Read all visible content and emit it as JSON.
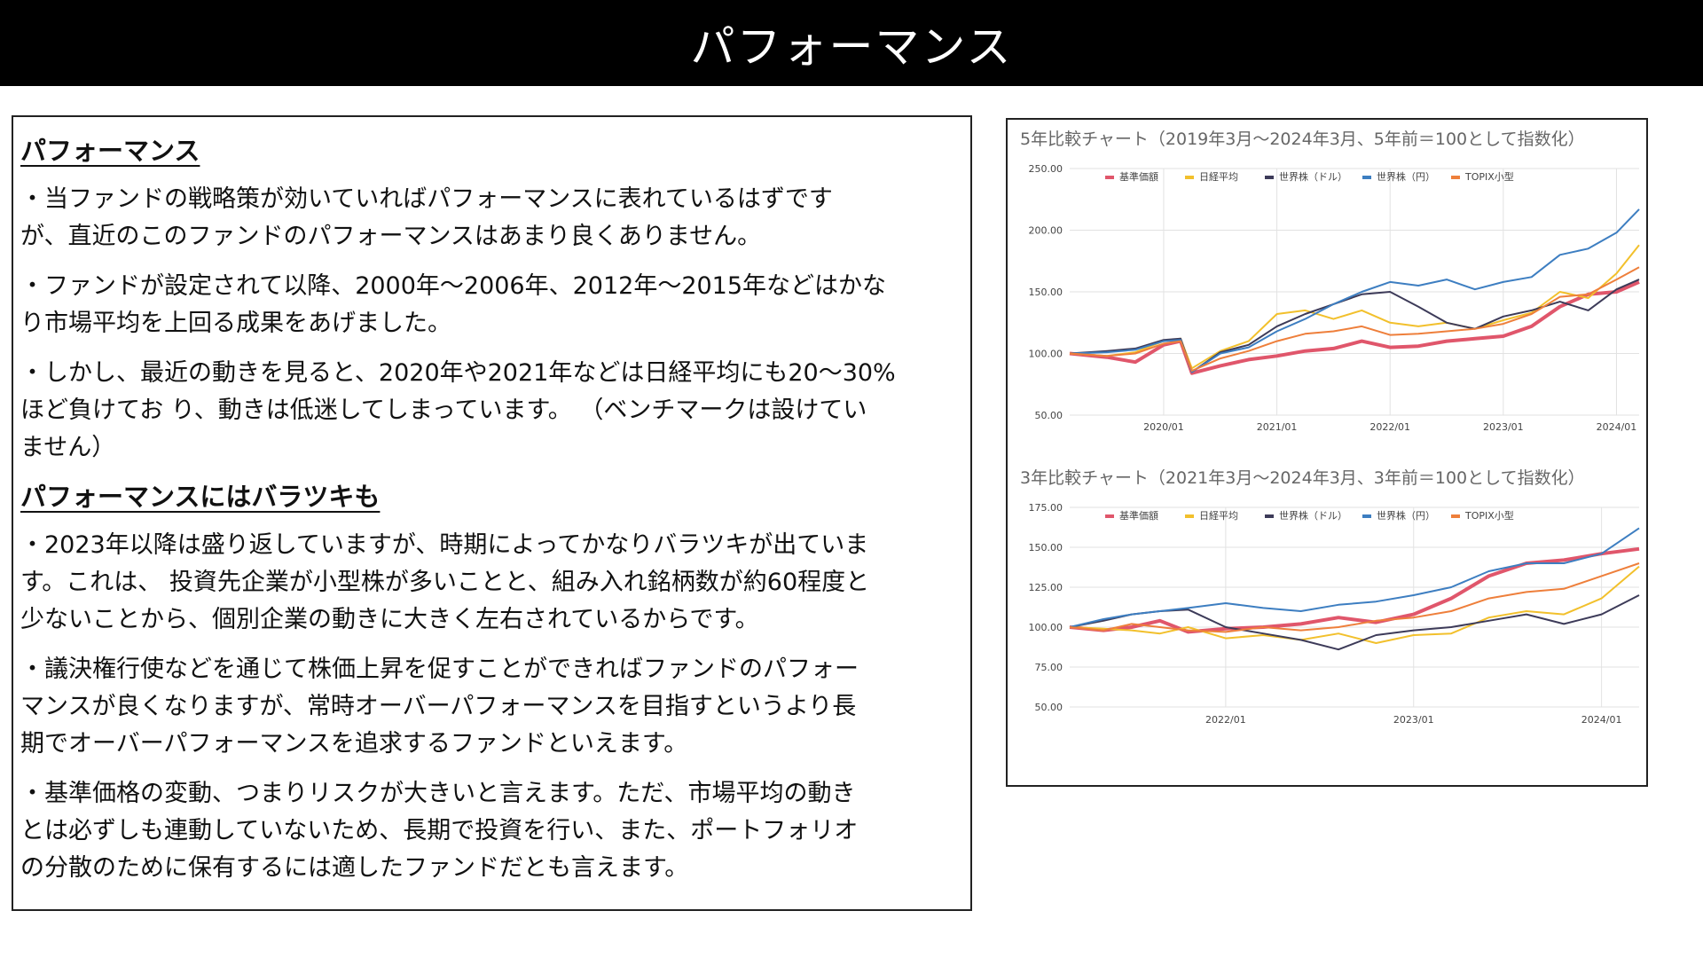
{
  "header": {
    "title": "パフォーマンス"
  },
  "text": {
    "section1_title": "パフォーマンス",
    "bullet1": "・当ファンドの戦略策が効いていればパフォーマンスに表れているはずです\nが、直近のこのファンドのパフォーマンスはあまり良くありません。",
    "bullet2": "・ファンドが設定されて以降、2000年〜2006年、2012年〜2015年などはかな\nり市場平均を上回る成果をあげました。",
    "bullet3": "・しかし、最近の動きを見ると、2020年や2021年などは日経平均にも20〜30%\nほど負けてお り、動きは低迷してしまっています。 （ベンチマークは設けてい\nません）",
    "section2_title": "パフォーマンスにはバラツキも",
    "bullet4": "・2023年以降は盛り返していますが、時期によってかなりバラツキが出ていま\nす。これは、 投資先企業が小型株が多いことと、組み入れ銘柄数が約60程度と\n少ないことから、個別企業の動きに大きく左右されているからです。",
    "bullet5": "・議決権行使などを通じて株価上昇を促すことができればファンドのパフォー\nマンスが良くなりますが、常時オーバーパフォーマンスを目指すというより長\n期でオーバーパフォーマンスを追求するファンドといえます。",
    "bullet6": "・基準価格の変動、つまりリスクが大きいと言えます。ただ、市場平均の動き\nとは必ずしも連動していないため、長期で投資を行い、また、ポートフォリオ\nの分散のために保有するには適したファンドだとも言えます。"
  },
  "chart_data": [
    {
      "type": "line",
      "title": "5年比較チャート（2019年3月〜2024年3月、5年前＝100として指数化）",
      "xlabel": "",
      "ylabel": "",
      "x_range": [
        2019.17,
        2024.2
      ],
      "ylim": [
        50,
        250
      ],
      "yticks": [
        "50.00",
        "100.00",
        "150.00",
        "200.00",
        "250.00"
      ],
      "ytick_values": [
        50,
        100,
        150,
        200,
        250
      ],
      "xticks": [
        "2020/01",
        "2021/01",
        "2022/01",
        "2023/01",
        "2024/01"
      ],
      "xtick_values": [
        2020.0,
        2021.0,
        2022.0,
        2023.0,
        2024.0
      ],
      "grid": true,
      "legend_position": "top",
      "series": [
        {
          "name": "基準価額",
          "color": "#e0566b",
          "width": 4,
          "x": [
            2019.17,
            2019.5,
            2019.75,
            2020.0,
            2020.15,
            2020.25,
            2020.5,
            2020.75,
            2021.0,
            2021.25,
            2021.5,
            2021.75,
            2022.0,
            2022.25,
            2022.5,
            2022.75,
            2023.0,
            2023.25,
            2023.5,
            2023.75,
            2024.0,
            2024.2
          ],
          "values": [
            100,
            97,
            93,
            107,
            110,
            84,
            90,
            95,
            98,
            102,
            104,
            110,
            105,
            106,
            110,
            112,
            114,
            122,
            138,
            148,
            150,
            158
          ]
        },
        {
          "name": "日経平均",
          "color": "#f2c02c",
          "width": 2,
          "x": [
            2019.17,
            2019.5,
            2019.75,
            2020.0,
            2020.15,
            2020.25,
            2020.5,
            2020.75,
            2021.0,
            2021.25,
            2021.5,
            2021.75,
            2022.0,
            2022.25,
            2022.5,
            2022.75,
            2023.0,
            2023.25,
            2023.5,
            2023.75,
            2024.0,
            2024.2
          ],
          "values": [
            100,
            98,
            101,
            110,
            112,
            88,
            102,
            110,
            132,
            135,
            128,
            135,
            125,
            122,
            125,
            120,
            127,
            133,
            150,
            145,
            165,
            188
          ]
        },
        {
          "name": "世界株（ドル）",
          "color": "#3d3b59",
          "width": 2,
          "x": [
            2019.17,
            2019.5,
            2019.75,
            2020.0,
            2020.15,
            2020.25,
            2020.5,
            2020.75,
            2021.0,
            2021.25,
            2021.5,
            2021.75,
            2022.0,
            2022.25,
            2022.5,
            2022.75,
            2023.0,
            2023.25,
            2023.5,
            2023.75,
            2024.0,
            2024.2
          ],
          "values": [
            100,
            102,
            104,
            111,
            112,
            85,
            101,
            107,
            122,
            132,
            140,
            148,
            150,
            138,
            125,
            120,
            130,
            135,
            142,
            135,
            152,
            160
          ]
        },
        {
          "name": "世界株（円）",
          "color": "#3d7ec1",
          "width": 2,
          "x": [
            2019.17,
            2019.5,
            2019.75,
            2020.0,
            2020.15,
            2020.25,
            2020.5,
            2020.75,
            2021.0,
            2021.25,
            2021.5,
            2021.75,
            2022.0,
            2022.25,
            2022.5,
            2022.75,
            2023.0,
            2023.25,
            2023.5,
            2023.75,
            2024.0,
            2024.2
          ],
          "values": [
            100,
            101,
            103,
            110,
            111,
            85,
            100,
            105,
            118,
            128,
            140,
            150,
            158,
            155,
            160,
            152,
            158,
            162,
            180,
            185,
            198,
            217
          ]
        },
        {
          "name": "TOPIX小型",
          "color": "#ee7f3b",
          "width": 2,
          "x": [
            2019.17,
            2019.5,
            2019.75,
            2020.0,
            2020.15,
            2020.25,
            2020.5,
            2020.75,
            2021.0,
            2021.25,
            2021.5,
            2021.75,
            2022.0,
            2022.25,
            2022.5,
            2022.75,
            2023.0,
            2023.25,
            2023.5,
            2023.75,
            2024.0,
            2024.2
          ],
          "values": [
            100,
            98,
            100,
            108,
            110,
            86,
            96,
            102,
            110,
            116,
            118,
            122,
            115,
            116,
            118,
            120,
            124,
            132,
            146,
            148,
            160,
            170
          ]
        }
      ]
    },
    {
      "type": "line",
      "title": "3年比較チャート（2021年3月〜2024年3月、3年前＝100として指数化）",
      "xlabel": "",
      "ylabel": "",
      "x_range": [
        2021.17,
        2024.2
      ],
      "ylim": [
        50,
        175
      ],
      "yticks": [
        "50.00",
        "75.00",
        "100.00",
        "125.00",
        "150.00",
        "175.00"
      ],
      "ytick_values": [
        50,
        75,
        100,
        125,
        150,
        175
      ],
      "xticks": [
        "2022/01",
        "2023/01",
        "2024/01"
      ],
      "xtick_values": [
        2022.0,
        2023.0,
        2024.0
      ],
      "grid": true,
      "legend_position": "top",
      "series": [
        {
          "name": "基準価額",
          "color": "#e0566b",
          "width": 4,
          "x": [
            2021.17,
            2021.35,
            2021.5,
            2021.65,
            2021.8,
            2022.0,
            2022.2,
            2022.4,
            2022.6,
            2022.8,
            2023.0,
            2023.2,
            2023.4,
            2023.6,
            2023.8,
            2024.0,
            2024.2
          ],
          "values": [
            100,
            98,
            100,
            104,
            97,
            99,
            100,
            102,
            106,
            103,
            108,
            118,
            132,
            140,
            142,
            146,
            149
          ]
        },
        {
          "name": "日経平均",
          "color": "#f2c02c",
          "width": 2,
          "x": [
            2021.17,
            2021.35,
            2021.5,
            2021.65,
            2021.8,
            2022.0,
            2022.2,
            2022.4,
            2022.6,
            2022.8,
            2023.0,
            2023.2,
            2023.4,
            2023.6,
            2023.8,
            2024.0,
            2024.2
          ],
          "values": [
            100,
            99,
            98,
            96,
            100,
            93,
            95,
            92,
            96,
            90,
            95,
            96,
            106,
            110,
            108,
            118,
            138
          ]
        },
        {
          "name": "世界株（ドル）",
          "color": "#3d3b59",
          "width": 2,
          "x": [
            2021.17,
            2021.35,
            2021.5,
            2021.65,
            2021.8,
            2022.0,
            2022.2,
            2022.4,
            2022.6,
            2022.8,
            2023.0,
            2023.2,
            2023.4,
            2023.6,
            2023.8,
            2024.0,
            2024.2
          ],
          "values": [
            100,
            104,
            108,
            110,
            111,
            100,
            96,
            92,
            86,
            95,
            98,
            100,
            104,
            108,
            102,
            108,
            120
          ]
        },
        {
          "name": "世界株（円）",
          "color": "#3d7ec1",
          "width": 2,
          "x": [
            2021.17,
            2021.35,
            2021.5,
            2021.65,
            2021.8,
            2022.0,
            2022.2,
            2022.4,
            2022.6,
            2022.8,
            2023.0,
            2023.2,
            2023.4,
            2023.6,
            2023.8,
            2024.0,
            2024.2
          ],
          "values": [
            100,
            105,
            108,
            110,
            112,
            115,
            112,
            110,
            114,
            116,
            120,
            125,
            135,
            140,
            140,
            146,
            162
          ]
        },
        {
          "name": "TOPIX小型",
          "color": "#ee7f3b",
          "width": 2,
          "x": [
            2021.17,
            2021.35,
            2021.5,
            2021.65,
            2021.8,
            2022.0,
            2022.2,
            2022.4,
            2022.6,
            2022.8,
            2023.0,
            2023.2,
            2023.4,
            2023.6,
            2023.8,
            2024.0,
            2024.2
          ],
          "values": [
            100,
            98,
            102,
            100,
            98,
            97,
            100,
            98,
            100,
            104,
            106,
            110,
            118,
            122,
            124,
            132,
            140
          ]
        }
      ]
    }
  ]
}
